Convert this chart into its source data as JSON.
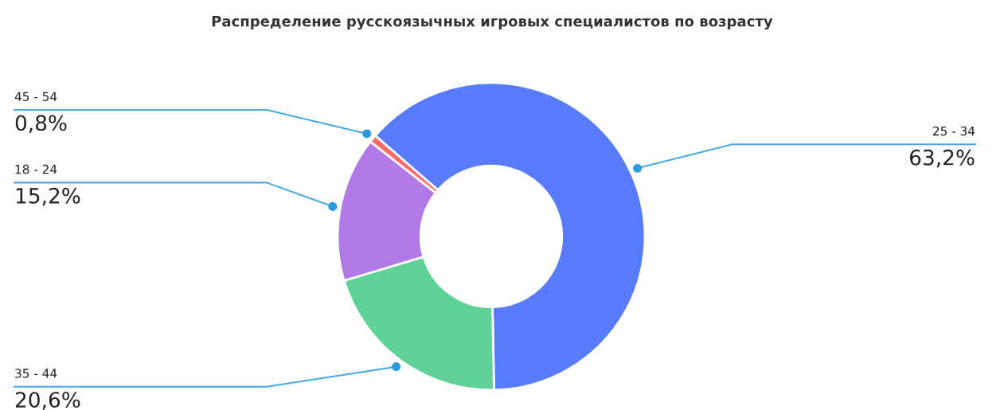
{
  "chart_data": {
    "type": "donut",
    "title": "Распределение русскоязычных игровых специалистов по возрасту",
    "categories": [
      "25 - 34",
      "35 - 44",
      "18 - 24",
      "45 - 54"
    ],
    "values": [
      63.2,
      20.6,
      15.2,
      0.8
    ],
    "value_labels": [
      "63,2%",
      "20,6%",
      "15,2%",
      "0,8%"
    ],
    "colors": [
      "#577bfa",
      "#5fd397",
      "#b07ae8",
      "#f76b6b"
    ],
    "legend": false
  }
}
